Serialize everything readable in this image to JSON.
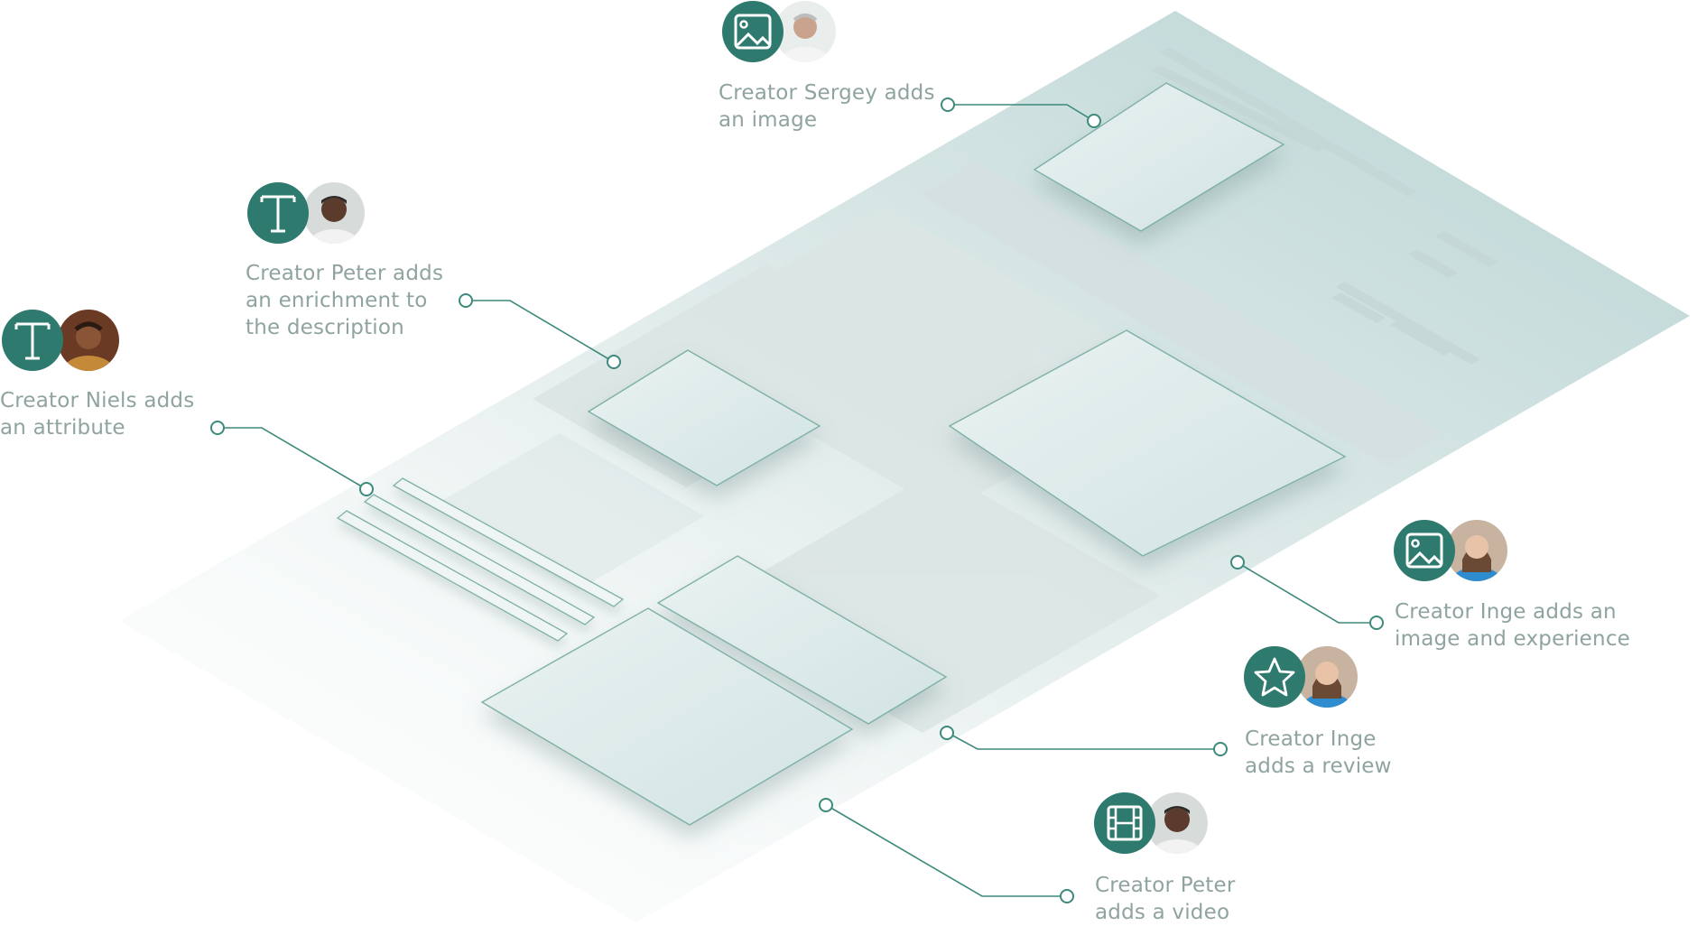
{
  "annotations": [
    {
      "id": "sergey",
      "icon": "image-icon",
      "person": "sergey",
      "text": "Creator Sergey adds\nan image"
    },
    {
      "id": "peter-enrich",
      "icon": "text-t-icon",
      "person": "peter",
      "text": "Creator Peter adds\nan enrichment to\nthe description"
    },
    {
      "id": "niels",
      "icon": "text-t-icon",
      "person": "niels",
      "text": "Creator Niels adds\nan attribute"
    },
    {
      "id": "inge-image",
      "icon": "image-icon",
      "person": "inge",
      "text": "Creator Inge adds an\nimage and experience"
    },
    {
      "id": "inge-review",
      "icon": "star-icon",
      "person": "inge",
      "text": "Creator Inge\nadds a review"
    },
    {
      "id": "peter-video",
      "icon": "film-icon",
      "person": "peter",
      "text": "Creator Peter\nadds a video"
    }
  ],
  "colors": {
    "accent": "#2e7a6e",
    "label": "#8fa3a0",
    "connector": "#3d8a7c",
    "plane": "#cfe2e1"
  }
}
